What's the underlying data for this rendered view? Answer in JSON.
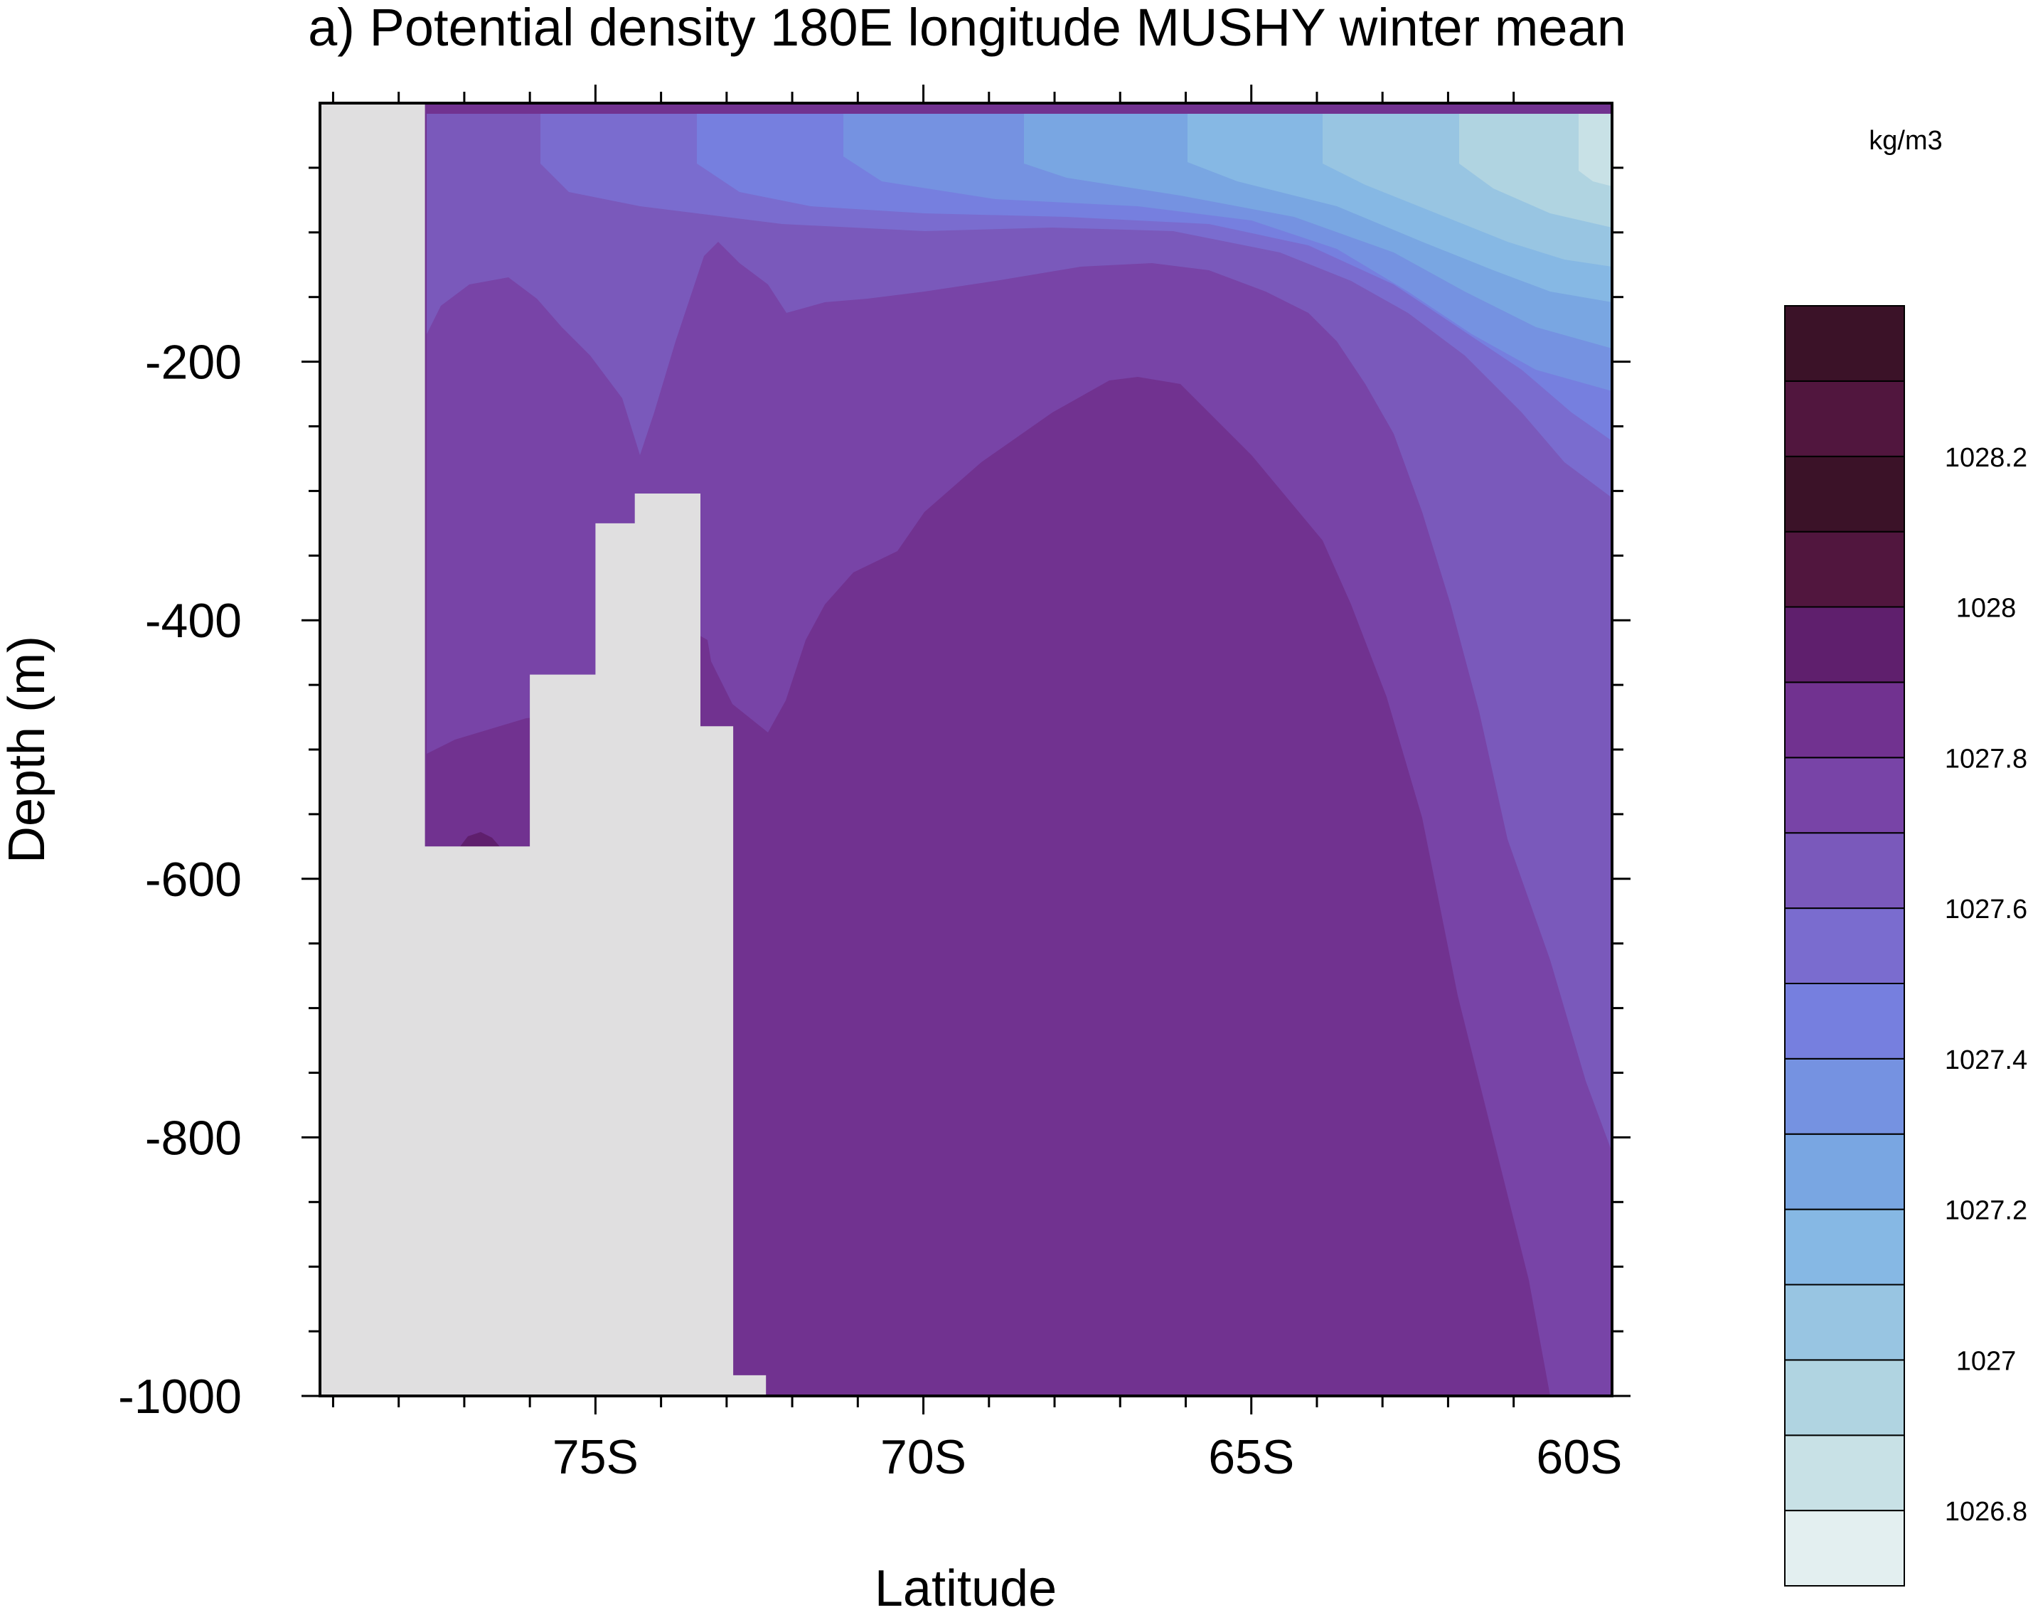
{
  "chart_data": {
    "type": "heatmap",
    "title": "a) Potential density 180E longitude MUSHY winter mean",
    "xlabel": "Latitude",
    "ylabel": "Depth (m)",
    "xlim": [
      -79.2,
      -59.5
    ],
    "ylim": [
      -1000,
      0
    ],
    "x_tick_labels": [
      {
        "value": -75,
        "label": "75S"
      },
      {
        "value": -70,
        "label": "70S"
      },
      {
        "value": -65,
        "label": "65S"
      },
      {
        "value": -60,
        "label": "60S"
      }
    ],
    "y_tick_labels": [
      {
        "value": -200,
        "label": "-200"
      },
      {
        "value": -400,
        "label": "-400"
      },
      {
        "value": -600,
        "label": "-600"
      },
      {
        "value": -800,
        "label": "-800"
      },
      {
        "value": -1000,
        "label": "-1000"
      }
    ],
    "colorbar": {
      "units": "kg/m3",
      "levels": [
        1026.75,
        1026.8,
        1026.85,
        1026.9,
        1026.95,
        1027,
        1027.05,
        1027.1,
        1027.15,
        1027.2,
        1027.25,
        1027.3,
        1027.35,
        1027.4,
        1027.45,
        1027.5,
        1027.55,
        1027.6,
        1027.65,
        1027.7,
        1027.75,
        1027.8,
        1027.85,
        1027.9,
        1027.95,
        1028,
        1028.05,
        1028.1,
        1028.15,
        1028.2,
        1028.25
      ],
      "labels": [
        "1026.8",
        "1027",
        "1027.2",
        "1027.4",
        "1027.6",
        "1027.8",
        "1028",
        "1028.2"
      ],
      "label_values": [
        1026.8,
        1027,
        1027.2,
        1027.4,
        1027.6,
        1027.8,
        1028,
        1028.2
      ],
      "colors_low_to_high": [
        "#e3eff0",
        "#c8e1e6",
        "#b0d4e1",
        "#98c5e2",
        "#86b8e4",
        "#79a6e2",
        "#7592e1",
        "#767fdf",
        "#7a6ccf",
        "#7a59bb",
        "#7844a7",
        "#713290",
        "#5f1f6d",
        "#51163e",
        "#3b1228"
      ],
      "missing_color": "#e0dfe0"
    },
    "surface_density_by_latitude": [
      {
        "lat_range": [
          -77.6,
          -76.0
        ],
        "density_range": [
          1027.6,
          1027.65
        ]
      },
      {
        "lat_range": [
          -76.0,
          -72.0
        ],
        "density_range": [
          1027.55,
          1027.6
        ]
      },
      {
        "lat_range": [
          -72.0,
          -71.5
        ],
        "density_range": [
          1027.5,
          1027.55
        ]
      },
      {
        "lat_range": [
          -71.5,
          -68.8
        ],
        "density_range": [
          1027.45,
          1027.5
        ]
      },
      {
        "lat_range": [
          -68.8,
          -66.4
        ],
        "density_range": [
          1027.4,
          1027.45
        ]
      },
      {
        "lat_range": [
          -66.4,
          -64.4
        ],
        "density_range": [
          1027.35,
          1027.4
        ]
      },
      {
        "lat_range": [
          -64.4,
          -62.3
        ],
        "density_range": [
          1027.3,
          1027.35
        ]
      },
      {
        "lat_range": [
          -62.3,
          -60.4
        ],
        "density_range": [
          1027.25,
          1027.3
        ]
      },
      {
        "lat_range": [
          -60.4,
          -59.5
        ],
        "density_range": [
          1027.2,
          1027.25
        ]
      }
    ],
    "deep_density_range": [
      1027.8,
      1027.85
    ],
    "land_mask": [
      [
        -79.2,
        0
      ],
      [
        -77.6,
        0
      ],
      [
        -77.6,
        -575
      ],
      [
        -76.0,
        -575
      ],
      [
        -76.0,
        -442
      ],
      [
        -75.0,
        -442
      ],
      [
        -75.0,
        -325
      ],
      [
        -74.4,
        -325
      ],
      [
        -74.4,
        -302
      ],
      [
        -73.4,
        -302
      ],
      [
        -73.4,
        -482
      ],
      [
        -72.9,
        -482
      ],
      [
        -72.9,
        -984
      ],
      [
        -72.4,
        -984
      ],
      [
        -72.4,
        -1000
      ],
      [
        -79.2,
        -1000
      ]
    ]
  }
}
